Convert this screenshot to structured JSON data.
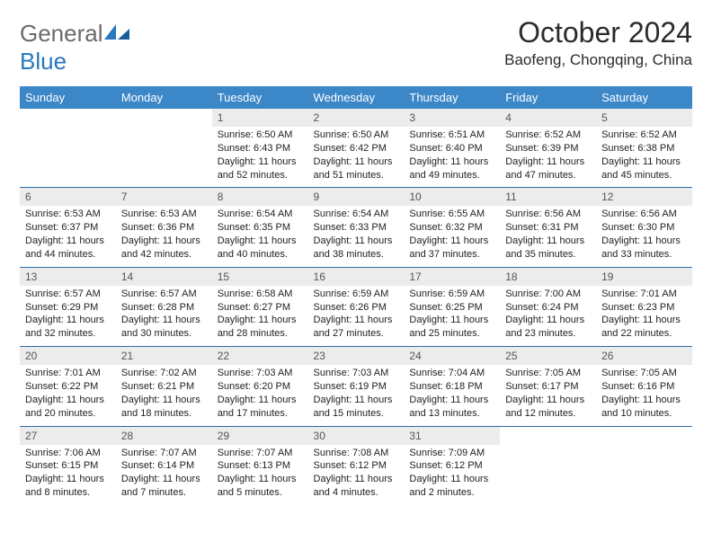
{
  "logo": {
    "general": "General",
    "blue": "Blue"
  },
  "header": {
    "month_title": "October 2024",
    "location": "Baofeng, Chongqing, China"
  },
  "colors": {
    "header_bg": "#3b87c8",
    "header_text": "#ffffff",
    "row_divider": "#2f6da8",
    "daynum_bg": "#ececec",
    "body_bg": "#ffffff"
  },
  "typography": {
    "month_title_size_pt": 24,
    "location_size_pt": 13,
    "weekday_size_pt": 10,
    "cell_size_pt": 8
  },
  "weekdays": [
    "Sunday",
    "Monday",
    "Tuesday",
    "Wednesday",
    "Thursday",
    "Friday",
    "Saturday"
  ],
  "weeks": [
    [
      {
        "n": "",
        "sr": "",
        "ss": "",
        "dl": ""
      },
      {
        "n": "",
        "sr": "",
        "ss": "",
        "dl": ""
      },
      {
        "n": "1",
        "sr": "Sunrise: 6:50 AM",
        "ss": "Sunset: 6:43 PM",
        "dl": "Daylight: 11 hours and 52 minutes."
      },
      {
        "n": "2",
        "sr": "Sunrise: 6:50 AM",
        "ss": "Sunset: 6:42 PM",
        "dl": "Daylight: 11 hours and 51 minutes."
      },
      {
        "n": "3",
        "sr": "Sunrise: 6:51 AM",
        "ss": "Sunset: 6:40 PM",
        "dl": "Daylight: 11 hours and 49 minutes."
      },
      {
        "n": "4",
        "sr": "Sunrise: 6:52 AM",
        "ss": "Sunset: 6:39 PM",
        "dl": "Daylight: 11 hours and 47 minutes."
      },
      {
        "n": "5",
        "sr": "Sunrise: 6:52 AM",
        "ss": "Sunset: 6:38 PM",
        "dl": "Daylight: 11 hours and 45 minutes."
      }
    ],
    [
      {
        "n": "6",
        "sr": "Sunrise: 6:53 AM",
        "ss": "Sunset: 6:37 PM",
        "dl": "Daylight: 11 hours and 44 minutes."
      },
      {
        "n": "7",
        "sr": "Sunrise: 6:53 AM",
        "ss": "Sunset: 6:36 PM",
        "dl": "Daylight: 11 hours and 42 minutes."
      },
      {
        "n": "8",
        "sr": "Sunrise: 6:54 AM",
        "ss": "Sunset: 6:35 PM",
        "dl": "Daylight: 11 hours and 40 minutes."
      },
      {
        "n": "9",
        "sr": "Sunrise: 6:54 AM",
        "ss": "Sunset: 6:33 PM",
        "dl": "Daylight: 11 hours and 38 minutes."
      },
      {
        "n": "10",
        "sr": "Sunrise: 6:55 AM",
        "ss": "Sunset: 6:32 PM",
        "dl": "Daylight: 11 hours and 37 minutes."
      },
      {
        "n": "11",
        "sr": "Sunrise: 6:56 AM",
        "ss": "Sunset: 6:31 PM",
        "dl": "Daylight: 11 hours and 35 minutes."
      },
      {
        "n": "12",
        "sr": "Sunrise: 6:56 AM",
        "ss": "Sunset: 6:30 PM",
        "dl": "Daylight: 11 hours and 33 minutes."
      }
    ],
    [
      {
        "n": "13",
        "sr": "Sunrise: 6:57 AM",
        "ss": "Sunset: 6:29 PM",
        "dl": "Daylight: 11 hours and 32 minutes."
      },
      {
        "n": "14",
        "sr": "Sunrise: 6:57 AM",
        "ss": "Sunset: 6:28 PM",
        "dl": "Daylight: 11 hours and 30 minutes."
      },
      {
        "n": "15",
        "sr": "Sunrise: 6:58 AM",
        "ss": "Sunset: 6:27 PM",
        "dl": "Daylight: 11 hours and 28 minutes."
      },
      {
        "n": "16",
        "sr": "Sunrise: 6:59 AM",
        "ss": "Sunset: 6:26 PM",
        "dl": "Daylight: 11 hours and 27 minutes."
      },
      {
        "n": "17",
        "sr": "Sunrise: 6:59 AM",
        "ss": "Sunset: 6:25 PM",
        "dl": "Daylight: 11 hours and 25 minutes."
      },
      {
        "n": "18",
        "sr": "Sunrise: 7:00 AM",
        "ss": "Sunset: 6:24 PM",
        "dl": "Daylight: 11 hours and 23 minutes."
      },
      {
        "n": "19",
        "sr": "Sunrise: 7:01 AM",
        "ss": "Sunset: 6:23 PM",
        "dl": "Daylight: 11 hours and 22 minutes."
      }
    ],
    [
      {
        "n": "20",
        "sr": "Sunrise: 7:01 AM",
        "ss": "Sunset: 6:22 PM",
        "dl": "Daylight: 11 hours and 20 minutes."
      },
      {
        "n": "21",
        "sr": "Sunrise: 7:02 AM",
        "ss": "Sunset: 6:21 PM",
        "dl": "Daylight: 11 hours and 18 minutes."
      },
      {
        "n": "22",
        "sr": "Sunrise: 7:03 AM",
        "ss": "Sunset: 6:20 PM",
        "dl": "Daylight: 11 hours and 17 minutes."
      },
      {
        "n": "23",
        "sr": "Sunrise: 7:03 AM",
        "ss": "Sunset: 6:19 PM",
        "dl": "Daylight: 11 hours and 15 minutes."
      },
      {
        "n": "24",
        "sr": "Sunrise: 7:04 AM",
        "ss": "Sunset: 6:18 PM",
        "dl": "Daylight: 11 hours and 13 minutes."
      },
      {
        "n": "25",
        "sr": "Sunrise: 7:05 AM",
        "ss": "Sunset: 6:17 PM",
        "dl": "Daylight: 11 hours and 12 minutes."
      },
      {
        "n": "26",
        "sr": "Sunrise: 7:05 AM",
        "ss": "Sunset: 6:16 PM",
        "dl": "Daylight: 11 hours and 10 minutes."
      }
    ],
    [
      {
        "n": "27",
        "sr": "Sunrise: 7:06 AM",
        "ss": "Sunset: 6:15 PM",
        "dl": "Daylight: 11 hours and 8 minutes."
      },
      {
        "n": "28",
        "sr": "Sunrise: 7:07 AM",
        "ss": "Sunset: 6:14 PM",
        "dl": "Daylight: 11 hours and 7 minutes."
      },
      {
        "n": "29",
        "sr": "Sunrise: 7:07 AM",
        "ss": "Sunset: 6:13 PM",
        "dl": "Daylight: 11 hours and 5 minutes."
      },
      {
        "n": "30",
        "sr": "Sunrise: 7:08 AM",
        "ss": "Sunset: 6:12 PM",
        "dl": "Daylight: 11 hours and 4 minutes."
      },
      {
        "n": "31",
        "sr": "Sunrise: 7:09 AM",
        "ss": "Sunset: 6:12 PM",
        "dl": "Daylight: 11 hours and 2 minutes."
      },
      {
        "n": "",
        "sr": "",
        "ss": "",
        "dl": ""
      },
      {
        "n": "",
        "sr": "",
        "ss": "",
        "dl": ""
      }
    ]
  ]
}
